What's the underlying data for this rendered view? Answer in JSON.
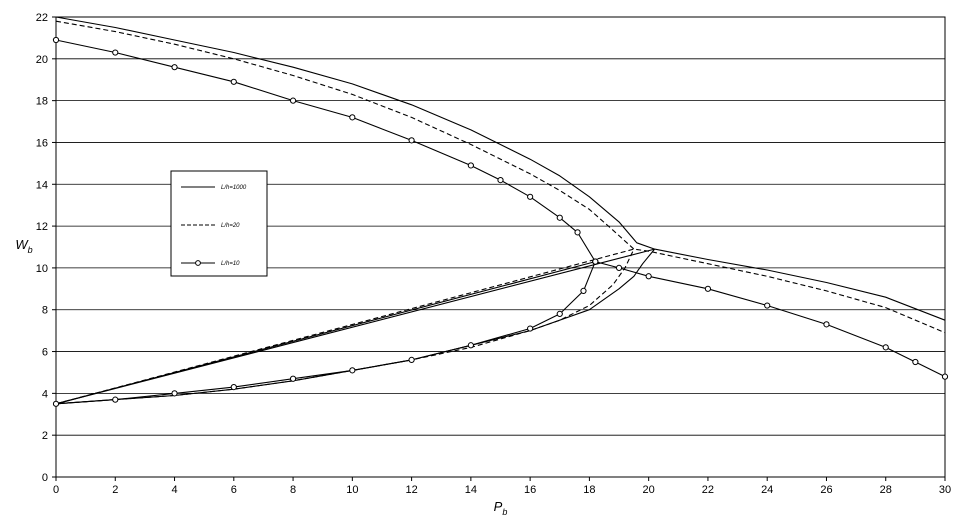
{
  "chart_data": {
    "type": "line",
    "title": "",
    "xlabel": {
      "main": "P",
      "sub": "b"
    },
    "ylabel": {
      "main": "W",
      "sub": "b"
    },
    "xlim": [
      0,
      30
    ],
    "ylim": [
      0,
      22
    ],
    "xticks": [
      "0",
      "2",
      "4",
      "6",
      "8",
      "10",
      "12",
      "14",
      "16",
      "18",
      "20",
      "22",
      "24",
      "26",
      "28",
      "30"
    ],
    "yticks": [
      "0",
      "2",
      "4",
      "6",
      "8",
      "10",
      "12",
      "14",
      "16",
      "18",
      "20",
      "22"
    ],
    "grid": "horizontal",
    "legend_position": "left",
    "series": [
      {
        "name": "L/h=1000",
        "style": "solid",
        "color": "#000000",
        "marker": "none",
        "points": [
          [
            0,
            22.0
          ],
          [
            2,
            21.5
          ],
          [
            4,
            20.9
          ],
          [
            6,
            20.3
          ],
          [
            8,
            19.6
          ],
          [
            10,
            18.8
          ],
          [
            12,
            17.8
          ],
          [
            14,
            16.6
          ],
          [
            16,
            15.2
          ],
          [
            17,
            14.4
          ],
          [
            18,
            13.4
          ],
          [
            19,
            12.2
          ],
          [
            19.6,
            11.2
          ],
          [
            20.2,
            10.9
          ],
          [
            20.2,
            10.9
          ],
          [
            19.8,
            10.2
          ],
          [
            19.5,
            9.6
          ],
          [
            19,
            9.0
          ],
          [
            18,
            8.0
          ],
          [
            16,
            7.0
          ],
          [
            14,
            6.3
          ],
          [
            12,
            5.6
          ],
          [
            10,
            5.1
          ],
          [
            8,
            4.6
          ],
          [
            6,
            4.2
          ],
          [
            4,
            3.9
          ],
          [
            2,
            3.7
          ],
          [
            0,
            3.5
          ],
          [
            20.2,
            10.9
          ],
          [
            22,
            10.4
          ],
          [
            24,
            9.9
          ],
          [
            26,
            9.3
          ],
          [
            28,
            8.6
          ],
          [
            30,
            7.5
          ]
        ]
      },
      {
        "name": "L/h=20",
        "style": "dashed",
        "color": "#000000",
        "marker": "none",
        "points": [
          [
            0,
            21.8
          ],
          [
            2,
            21.3
          ],
          [
            4,
            20.7
          ],
          [
            6,
            20.0
          ],
          [
            8,
            19.2
          ],
          [
            10,
            18.3
          ],
          [
            12,
            17.2
          ],
          [
            14,
            15.9
          ],
          [
            16,
            14.5
          ],
          [
            17,
            13.7
          ],
          [
            18,
            12.8
          ],
          [
            18.8,
            11.8
          ],
          [
            19.5,
            10.9
          ],
          [
            19.5,
            10.9
          ],
          [
            19.2,
            10.0
          ],
          [
            18.8,
            9.2
          ],
          [
            18,
            8.2
          ],
          [
            17,
            7.5
          ],
          [
            16,
            7.0
          ],
          [
            14,
            6.2
          ],
          [
            12,
            5.6
          ],
          [
            10,
            5.1
          ],
          [
            8,
            4.6
          ],
          [
            6,
            4.2
          ],
          [
            4,
            3.9
          ],
          [
            2,
            3.7
          ],
          [
            0,
            3.5
          ],
          [
            19.5,
            10.9
          ],
          [
            20,
            10.8
          ],
          [
            22,
            10.2
          ],
          [
            24,
            9.6
          ],
          [
            26,
            8.9
          ],
          [
            28,
            8.1
          ],
          [
            30,
            6.9
          ]
        ]
      },
      {
        "name": "L/h=10",
        "style": "solid",
        "color": "#000000",
        "marker": "circle",
        "points": [
          [
            0,
            20.9
          ],
          [
            2,
            20.3
          ],
          [
            4,
            19.6
          ],
          [
            6,
            18.9
          ],
          [
            8,
            18.0
          ],
          [
            10,
            17.2
          ],
          [
            12,
            16.1
          ],
          [
            14,
            14.9
          ],
          [
            15,
            14.2
          ],
          [
            16,
            13.4
          ],
          [
            17,
            12.4
          ],
          [
            17.6,
            11.7
          ],
          [
            18.2,
            10.3
          ],
          [
            18.2,
            10.3
          ],
          [
            17.8,
            8.9
          ],
          [
            17,
            7.8
          ],
          [
            16,
            7.1
          ],
          [
            14,
            6.3
          ],
          [
            12,
            5.6
          ],
          [
            10,
            5.1
          ],
          [
            8,
            4.7
          ],
          [
            6,
            4.3
          ],
          [
            4,
            4.0
          ],
          [
            2,
            3.7
          ],
          [
            0,
            3.5
          ],
          [
            18.2,
            10.3
          ],
          [
            19,
            10.0
          ],
          [
            20,
            9.6
          ],
          [
            22,
            9.0
          ],
          [
            24,
            8.2
          ],
          [
            26,
            7.3
          ],
          [
            28,
            6.2
          ],
          [
            29,
            5.5
          ],
          [
            30,
            4.8
          ]
        ]
      }
    ]
  }
}
